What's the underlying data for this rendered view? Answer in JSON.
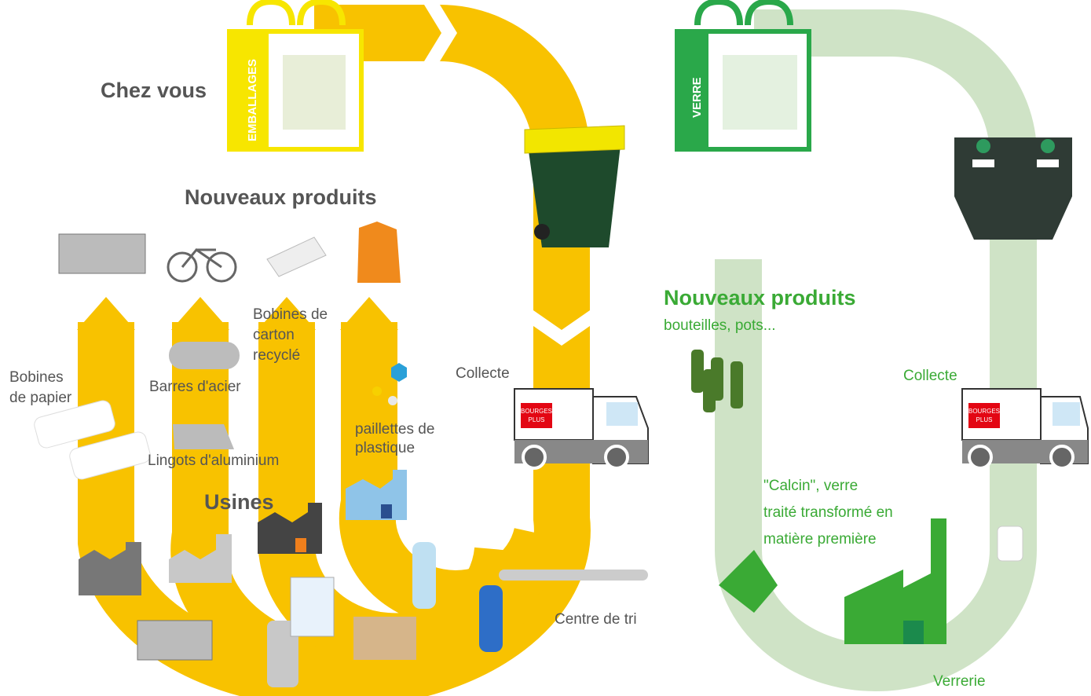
{
  "packaging_cycle": {
    "home": "Chez vous",
    "bag_label": "EMBALLAGES",
    "new_products": "Nouveaux produits",
    "cardboard_reels": [
      "Bobines de",
      "carton",
      "recyclé"
    ],
    "paper_reels": [
      "Bobines",
      "de papier"
    ],
    "steel_bars": "Barres d'acier",
    "aluminium_ingots": "Lingots d'aluminium",
    "plastic_flakes": [
      "paillettes de",
      "plastique"
    ],
    "factories": "Usines",
    "collection": "Collecte",
    "sorting_centre": "Centre de tri",
    "truck_logo": [
      "BOURGES",
      "PLUS"
    ]
  },
  "glass_cycle": {
    "bag_label": "VERRE",
    "new_products": "Nouveaux produits",
    "new_products_detail": "bouteilles, pots...",
    "collection": "Collecte",
    "cullet": [
      "\"Calcin\", verre",
      "traité transformé en",
      "matière première"
    ],
    "glassworks": "Verrerie",
    "truck_logo": [
      "BOURGES",
      "PLUS"
    ]
  }
}
